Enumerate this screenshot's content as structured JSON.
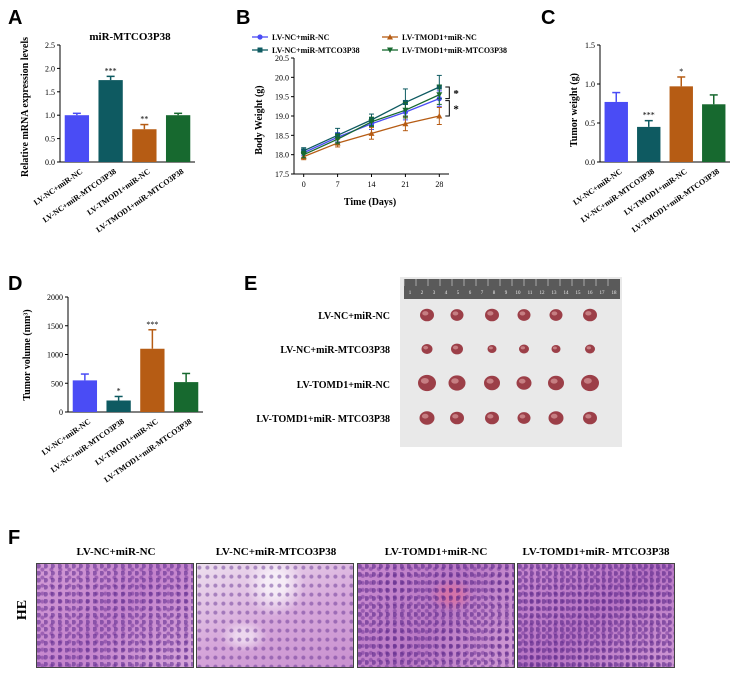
{
  "colors": {
    "lv_nc_mir_nc": "#4a4cf5",
    "lv_nc_mir_mtco3p38": "#0e5a61",
    "lv_tmod1_mir_nc": "#b65c14",
    "lv_tmod1_mir_mtco3p38": "#17692f"
  },
  "panel_letters": [
    "A",
    "B",
    "C",
    "D",
    "E",
    "F"
  ],
  "chart_data": [
    {
      "panel": "A",
      "type": "bar",
      "title": "miR-MTCO3P38",
      "xlabel": "",
      "ylabel": "Relative mRNA expression levels",
      "ylim": [
        0,
        2.5
      ],
      "yticks": [
        0.0,
        0.5,
        1.0,
        1.5,
        2.0,
        2.5
      ],
      "categories": [
        "LV-NC+miR-NC",
        "LV-NC+miR-MTCO3P38",
        "LV-TMOD1+miR-NC",
        "LV-TMOD1+miR-MTCO3P38"
      ],
      "values": [
        1.0,
        1.75,
        0.7,
        1.0
      ],
      "errors": [
        0.04,
        0.08,
        0.1,
        0.04
      ],
      "significance": [
        "",
        "***",
        "**",
        ""
      ]
    },
    {
      "panel": "B",
      "type": "line",
      "title": "",
      "xlabel": "Time (Days)",
      "ylabel": "Body Weight (g)",
      "x": [
        0,
        7,
        14,
        21,
        28
      ],
      "ylim": [
        17.5,
        20.5
      ],
      "yticks": [
        17.5,
        18.0,
        18.5,
        19.0,
        19.5,
        20.0,
        20.5
      ],
      "series": [
        {
          "name": "LV-NC+miR-NC",
          "values": [
            18.05,
            18.45,
            18.8,
            19.1,
            19.45
          ],
          "errors": [
            0.08,
            0.12,
            0.15,
            0.2,
            0.2
          ]
        },
        {
          "name": "LV-TMOD1+miR-NC",
          "values": [
            17.95,
            18.3,
            18.55,
            18.8,
            19.0
          ],
          "errors": [
            0.08,
            0.1,
            0.15,
            0.18,
            0.22
          ]
        },
        {
          "name": "LV-NC+miR-MTCO3P38",
          "values": [
            18.1,
            18.5,
            18.9,
            19.35,
            19.75
          ],
          "errors": [
            0.08,
            0.18,
            0.15,
            0.35,
            0.3
          ]
        },
        {
          "name": "LV-TMOD1+miR-MTCO3P38",
          "values": [
            18.0,
            18.4,
            18.85,
            19.15,
            19.55
          ],
          "errors": [
            0.08,
            0.12,
            0.12,
            0.2,
            0.25
          ]
        }
      ],
      "significance": [
        "*",
        "*"
      ]
    },
    {
      "panel": "C",
      "type": "bar",
      "title": "",
      "xlabel": "",
      "ylabel": "Tumor weight (g)",
      "ylim": [
        0,
        1.5
      ],
      "yticks": [
        0.0,
        0.5,
        1.0,
        1.5
      ],
      "categories": [
        "LV-NC+miR-NC",
        "LV-NC+miR-MTCO3P38",
        "LV-TMOD1+miR-NC",
        "LV-TMOD1+miR-MTCO3P38"
      ],
      "values": [
        0.77,
        0.45,
        0.97,
        0.74
      ],
      "errors": [
        0.12,
        0.08,
        0.12,
        0.12
      ],
      "significance": [
        "",
        "***",
        "*",
        ""
      ]
    },
    {
      "panel": "D",
      "type": "bar",
      "title": "",
      "xlabel": "",
      "ylabel": "Tumor volume (mm³)",
      "ylim": [
        0,
        2000
      ],
      "yticks": [
        0,
        500,
        1000,
        1500,
        2000
      ],
      "categories": [
        "LV-NC+miR-NC",
        "LV-NC+miR-MTCO3P38",
        "LV-TMOD1+miR-NC",
        "LV-TMOD1+miR-MTCO3P38"
      ],
      "values": [
        550,
        200,
        1100,
        520
      ],
      "errors": [
        110,
        70,
        330,
        150
      ],
      "significance": [
        "",
        "*",
        "***",
        ""
      ]
    }
  ],
  "panel_e": {
    "row_labels": [
      "LV-NC+miR-NC",
      "LV-NC+miR-MTCO3P38",
      "LV-TOMD1+miR-NC",
      "LV-TOMD1+miR- MTCO3P38"
    ],
    "tumor_sizes": [
      [
        14,
        13,
        14,
        13,
        13,
        14
      ],
      [
        11,
        12,
        9,
        10,
        9,
        10
      ],
      [
        18,
        17,
        16,
        15,
        16,
        18
      ],
      [
        15,
        14,
        14,
        13,
        15,
        14
      ]
    ],
    "ruler_numbers": [
      "1",
      "2",
      "3",
      "4",
      "5",
      "6",
      "7",
      "8",
      "9",
      "10",
      "11",
      "12",
      "13",
      "14",
      "15",
      "16",
      "17",
      "18"
    ]
  },
  "panel_f": {
    "stain_label": "HE",
    "headers": [
      "LV-NC+miR-NC",
      "LV-NC+miR-MTCO3P38",
      "LV-TOMD1+miR-NC",
      "LV-TOMD1+miR- MTCO3P38"
    ]
  }
}
